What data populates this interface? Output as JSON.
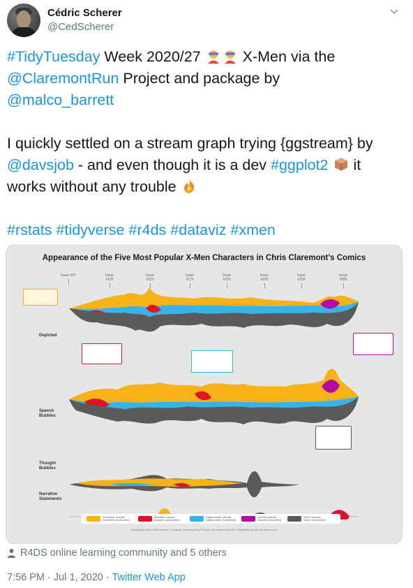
{
  "author": {
    "name": "Cédric Scherer",
    "handle": "@CedScherer"
  },
  "tweet": {
    "line1": {
      "tag": "#TidyTuesday",
      "text": " Week 2020/27 ",
      "text2": " X-Men via the"
    },
    "line2": {
      "mention": "@ClaremontRun",
      "text": " Project and package by"
    },
    "line3": {
      "mention": "@malco_barrett"
    },
    "line4": {
      "text": "I quickly settled on a stream graph trying {ggstream} by"
    },
    "line5": {
      "mention": "@davsjob",
      "text": " - and even though it is a dev ",
      "tag": "#ggplot2",
      "text2": " it"
    },
    "line6": {
      "text": "works without any trouble "
    },
    "hashtags": [
      "#rstats",
      "#tidyverse",
      "#r4ds",
      "#dataviz",
      "#xmen"
    ]
  },
  "emoji_icons": [
    "superhero-icon",
    "superhero-icon",
    "package-icon",
    "fire-icon"
  ],
  "chart": {
    "title": "Appearance of the Five Most Popular X-Men Characters in Chris Claremont's Comics",
    "issues": [
      "Issue #97",
      "Issue #125",
      "Issue #150",
      "Issue #175",
      "Issue #200",
      "Issue #225",
      "Issue #250",
      "Issue #280"
    ],
    "rows": [
      "Depicted",
      "Speech Bubbles",
      "Thought Bubbles",
      "Narrative Statements"
    ],
    "legend": [
      {
        "label1": "Wolverine (visual)",
        "label2": "Wolverine (costumed)",
        "color": "#f7b217"
      },
      {
        "label1": "Magneto (visual)",
        "label2": "Magneto (costumed)",
        "color": "#e3112b"
      },
      {
        "label1": "Nightcrawler (visual)",
        "label2": "Nightcrawler (costumed)",
        "color": "#36b3e8"
      },
      {
        "label1": "Gambit (visual)",
        "label2": "Gambit (costumed)",
        "color": "#b10ca3"
      },
      {
        "label1": "Storm (visual)",
        "label2": "Storm (costumed)",
        "color": "#5a5a5a"
      }
    ],
    "caption": "Visualization by Cédric Scherer • Data by Claremont Run Project via Malcom Barrett • Popularity Scores by ranker.com"
  },
  "social_proof": "R4DS online learning community and 5 others",
  "timestamp": "7:56 PM · Jul 1, 2020 · ",
  "source": "Twitter Web App"
}
